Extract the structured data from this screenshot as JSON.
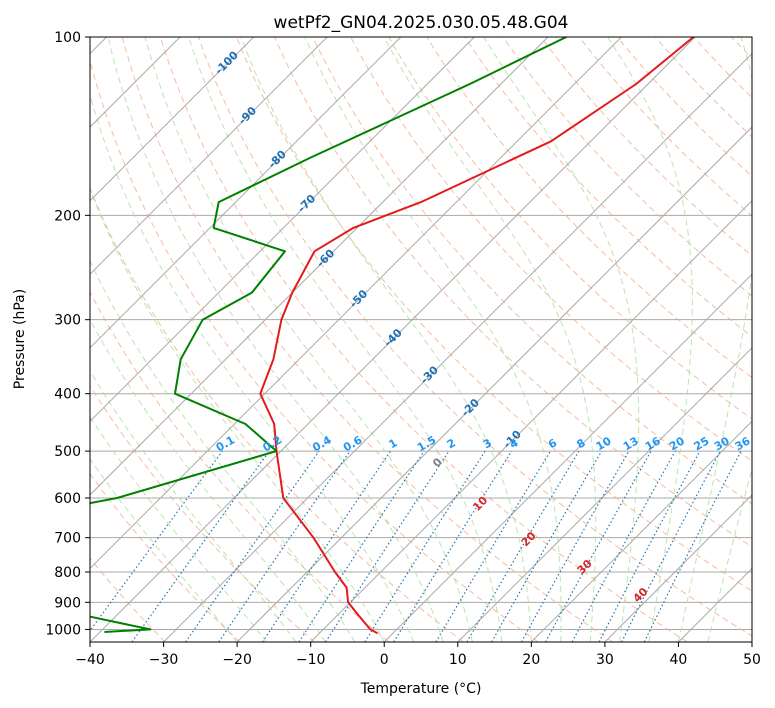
{
  "chart_data": {
    "type": "line",
    "title": "wetPf2_GN04.2025.030.05.48.G04",
    "xlabel": "Temperature (°C)",
    "ylabel": "Pressure (hPa)",
    "xlim": [
      -40,
      50
    ],
    "ylim": [
      1050,
      100
    ],
    "y_scale": "log",
    "x_ticks": [
      -40,
      -30,
      -20,
      -10,
      0,
      10,
      20,
      30,
      40,
      50
    ],
    "x_tick_labels": [
      "−40",
      "−30",
      "−20",
      "−10",
      "0",
      "10",
      "20",
      "30",
      "40",
      "50"
    ],
    "y_ticks": [
      1000,
      900,
      800,
      700,
      600,
      500,
      400,
      300,
      200,
      100
    ],
    "y_tick_labels": [
      "1000",
      "900",
      "800",
      "700",
      "600",
      "500",
      "400",
      "300",
      "200",
      "100"
    ],
    "grid": true,
    "colors": {
      "temperature": "#e41a1c",
      "dewpoint": "#008000",
      "isotherm": "#a9a9a9",
      "dry_adiabat": "#f4a582",
      "moist_adiabat": "#b2dfa0",
      "mixing_ratio": "#1f77b4",
      "isotherm_label": "#1f6fb4",
      "mixing_label": "#2196f3",
      "theta_label": "#d62728"
    },
    "series": [
      {
        "name": "",
        "role": "temperature",
        "points": [
          [
            -40.2,
            100
          ],
          [
            -41.6,
            120
          ],
          [
            -45.4,
            150
          ],
          [
            -54.8,
            190
          ],
          [
            -60.5,
            210
          ],
          [
            -62.6,
            230
          ],
          [
            -60,
            270
          ],
          [
            -57.8,
            300
          ],
          [
            -53.5,
            350
          ],
          [
            -50.6,
            400
          ],
          [
            -44.6,
            450
          ],
          [
            -40.6,
            500
          ],
          [
            -33.3,
            600
          ],
          [
            -23.8,
            700
          ],
          [
            -16.2,
            800
          ],
          [
            -12.5,
            850
          ],
          [
            -10.3,
            900
          ],
          [
            -6.9,
            950
          ],
          [
            -3.6,
            1000
          ],
          [
            -2.1,
            1015
          ]
        ]
      },
      {
        "name": "",
        "role": "dewpoint",
        "points": [
          [
            -57.5,
            100
          ],
          [
            -64.2,
            120
          ],
          [
            -75.9,
            160
          ],
          [
            -82.3,
            190
          ],
          [
            -79.5,
            210
          ],
          [
            -66.6,
            230
          ],
          [
            -65.5,
            270
          ],
          [
            -68.5,
            300
          ],
          [
            -66.1,
            350
          ],
          [
            -62.2,
            400
          ],
          [
            -48.5,
            450
          ],
          [
            -40.6,
            500
          ],
          [
            -55.9,
            600
          ],
          [
            -78.8,
            700
          ],
          [
            -68.6,
            800
          ],
          [
            -60.7,
            850
          ],
          [
            -53.5,
            900
          ],
          [
            -43.8,
            950
          ],
          [
            -33.5,
            1000
          ],
          [
            -39.4,
            1010
          ]
        ]
      }
    ],
    "isotherm_labels": [
      "-100",
      "-90",
      "-80",
      "-70",
      "-60",
      "-50",
      "-40",
      "-30",
      "-20",
      "-10"
    ],
    "mixing_ratio_labels": [
      "0.1",
      "0.2",
      "0.4",
      "0.6",
      "1",
      "1.5",
      "2",
      "3",
      "4",
      "6",
      "8",
      "10",
      "13",
      "16",
      "20",
      "25",
      "30",
      "36"
    ],
    "theta_e_labels": [
      "0",
      "10",
      "20",
      "30",
      "40"
    ]
  }
}
